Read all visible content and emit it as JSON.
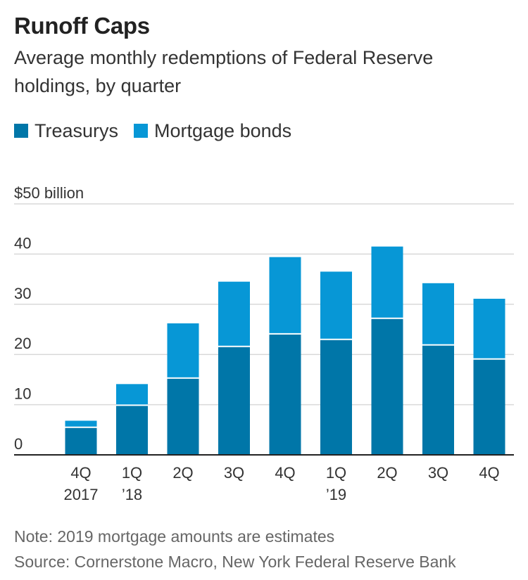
{
  "title": "Runoff Caps",
  "subtitle": "Average monthly redemptions of Federal Reserve holdings, by quarter",
  "legend": {
    "treasurys": "Treasurys",
    "mortgage": "Mortgage bonds"
  },
  "colors": {
    "treasurys": "#0076a8",
    "mortgage": "#0797d6",
    "grid": "#d9d9d9",
    "axis": "#222222",
    "text": "#333333",
    "note": "#666666"
  },
  "notes": {
    "note": "Note: 2019 mortgage amounts are estimates",
    "source": "Source: Cornerstone Macro, New York Federal Reserve Bank"
  },
  "chart_data": {
    "type": "bar",
    "stacked": true,
    "categories": [
      [
        "4Q",
        "2017"
      ],
      [
        "1Q",
        "’18"
      ],
      [
        "2Q",
        ""
      ],
      [
        "3Q",
        ""
      ],
      [
        "4Q",
        ""
      ],
      [
        "1Q",
        "’19"
      ],
      [
        "2Q",
        ""
      ],
      [
        "3Q",
        ""
      ],
      [
        "4Q",
        ""
      ]
    ],
    "series": [
      {
        "name": "Treasurys",
        "values": [
          5.5,
          9.9,
          15.3,
          21.6,
          24.1,
          23.0,
          27.2,
          21.9,
          19.1
        ]
      },
      {
        "name": "Mortgage bonds",
        "values": [
          1.3,
          4.2,
          10.9,
          12.9,
          15.3,
          13.5,
          14.3,
          12.3,
          12.0
        ]
      }
    ],
    "yticks": [
      0,
      10,
      20,
      30,
      40,
      50
    ],
    "ytick_labels": [
      "0",
      "10",
      "20",
      "30",
      "40",
      "$50 billion"
    ],
    "ylim": [
      0,
      50
    ],
    "grid": true,
    "legend_position": "top-left"
  }
}
